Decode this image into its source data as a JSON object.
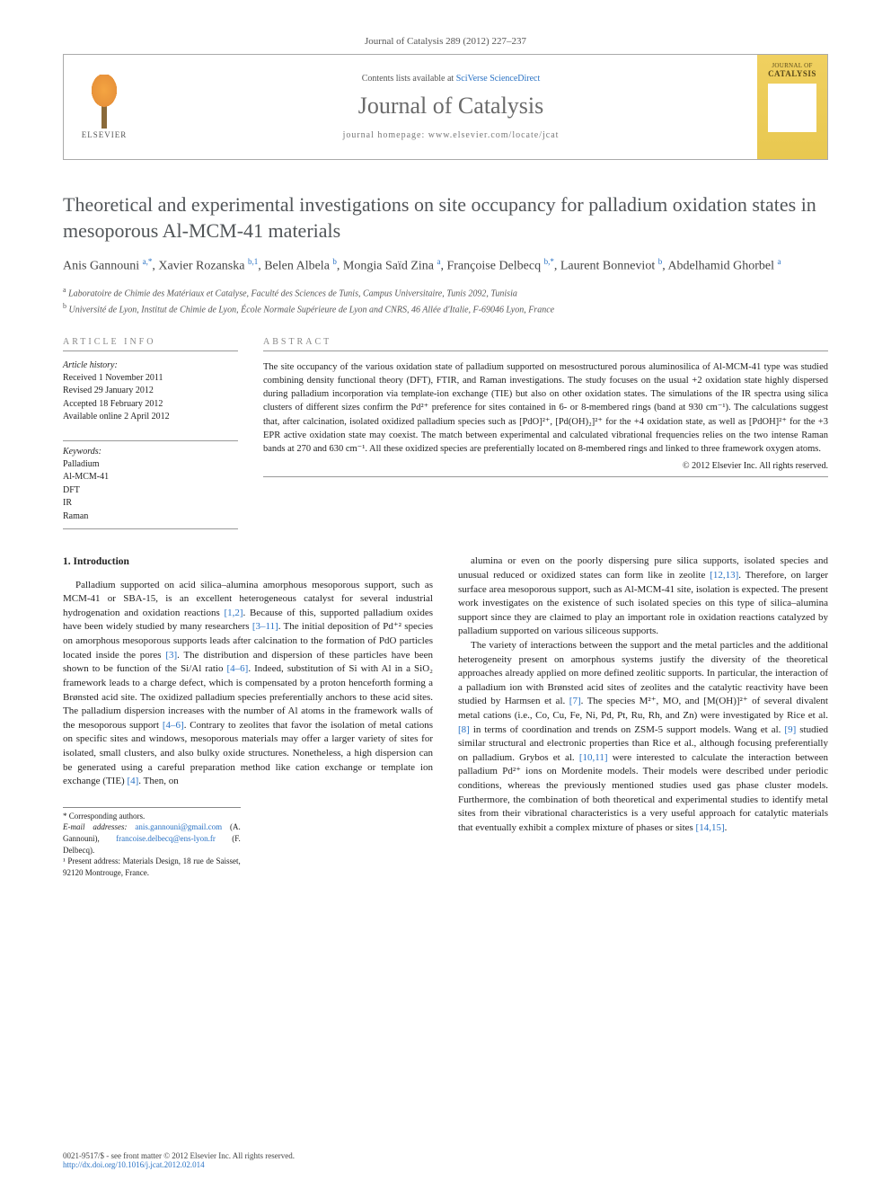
{
  "header": {
    "journal_ref": "Journal of Catalysis 289 (2012) 227–237",
    "contents_prefix": "Contents lists available at ",
    "contents_link_text": "SciVerse ScienceDirect",
    "journal_name": "Journal of Catalysis",
    "homepage_label": "journal homepage: www.elsevier.com/locate/jcat",
    "publisher_logo_text": "ELSEVIER",
    "cover_line1": "JOURNAL OF",
    "cover_line2": "CATALYSIS"
  },
  "article": {
    "title": "Theoretical and experimental investigations on site occupancy for palladium oxidation states in mesoporous Al-MCM-41 materials",
    "authors_html": "Anis Gannouni <sup>a,*</sup>, Xavier Rozanska <sup>b,1</sup>, Belen Albela <sup>b</sup>, Mongia Saïd Zina <sup>a</sup>, Françoise Delbecq <sup>b,*</sup>, Laurent Bonneviot <sup>b</sup>, Abdelhamid Ghorbel <sup>a</sup>",
    "affiliations": {
      "a": "Laboratoire de Chimie des Matériaux et Catalyse, Faculté des Sciences de Tunis, Campus Universitaire, Tunis 2092, Tunisia",
      "b": "Université de Lyon, Institut de Chimie de Lyon, École Normale Supérieure de Lyon and CNRS, 46 Allée d'Italie, F-69046 Lyon, France"
    }
  },
  "article_info": {
    "heading": "ARTICLE INFO",
    "history_label": "Article history:",
    "history": [
      "Received 1 November 2011",
      "Revised 29 January 2012",
      "Accepted 18 February 2012",
      "Available online 2 April 2012"
    ],
    "keywords_label": "Keywords:",
    "keywords": [
      "Palladium",
      "Al-MCM-41",
      "DFT",
      "IR",
      "Raman"
    ]
  },
  "abstract": {
    "heading": "ABSTRACT",
    "text": "The site occupancy of the various oxidation state of palladium supported on mesostructured porous aluminosilica of Al-MCM-41 type was studied combining density functional theory (DFT), FTIR, and Raman investigations. The study focuses on the usual +2 oxidation state highly dispersed during palladium incorporation via template-ion exchange (TIE) but also on other oxidation states. The simulations of the IR spectra using silica clusters of different sizes confirm the Pd²⁺ preference for sites contained in 6- or 8-membered rings (band at 930 cm⁻¹). The calculations suggest that, after calcination, isolated oxidized palladium species such as [PdO]²⁺, [Pd(OH)₂]²⁺ for the +4 oxidation state, as well as [PdOH]²⁺ for the +3 EPR active oxidation state may coexist. The match between experimental and calculated vibrational frequencies relies on the two intense Raman bands at 270 and 630 cm⁻¹. All these oxidized species are preferentially located on 8-membered rings and linked to three framework oxygen atoms.",
    "copyright": "© 2012 Elsevier Inc. All rights reserved."
  },
  "body": {
    "section_heading": "1. Introduction",
    "col1_p1": "Palladium supported on acid silica–alumina amorphous mesoporous support, such as MCM-41 or SBA-15, is an excellent heterogeneous catalyst for several industrial hydrogenation and oxidation reactions [1,2]. Because of this, supported palladium oxides have been widely studied by many researchers [3–11]. The initial deposition of Pd⁺² species on amorphous mesoporous supports leads after calcination to the formation of PdO particles located inside the pores [3]. The distribution and dispersion of these particles have been shown to be function of the Si/Al ratio [4–6]. Indeed, substitution of Si with Al in a SiO₂ framework leads to a charge defect, which is compensated by a proton henceforth forming a Brønsted acid site. The oxidized palladium species preferentially anchors to these acid sites. The palladium dispersion increases with the number of Al atoms in the framework walls of the mesoporous support [4–6]. Contrary to zeolites that favor the isolation of metal cations on specific sites and windows, mesoporous materials may offer a larger variety of sites for isolated, small clusters, and also bulky oxide structures. Nonetheless, a high dispersion can be generated using a careful preparation method like cation exchange or template ion exchange (TIE) [4]. Then, on",
    "col2_p1": "alumina or even on the poorly dispersing pure silica supports, isolated species and unusual reduced or oxidized states can form like in zeolite [12,13]. Therefore, on larger surface area mesoporous support, such as Al-MCM-41 site, isolation is expected. The present work investigates on the existence of such isolated species on this type of silica–alumina support since they are claimed to play an important role in oxidation reactions catalyzed by palladium supported on various siliceous supports.",
    "col2_p2": "The variety of interactions between the support and the metal particles and the additional heterogeneity present on amorphous systems justify the diversity of the theoretical approaches already applied on more defined zeolitic supports. In particular, the interaction of a palladium ion with Brønsted acid sites of zeolites and the catalytic reactivity have been studied by Harmsen et al. [7]. The species M²⁺, MO, and [M(OH)]²⁺ of several divalent metal cations (i.e., Co, Cu, Fe, Ni, Pd, Pt, Ru, Rh, and Zn) were investigated by Rice et al. [8] in terms of coordination and trends on ZSM-5 support models. Wang et al. [9] studied similar structural and electronic properties than Rice et al., although focusing preferentially on palladium. Grybos et al. [10,11] were interested to calculate the interaction between palladium Pd²⁺ ions on Mordenite models. Their models were described under periodic conditions, whereas the previously mentioned studies used gas phase cluster models. Furthermore, the combination of both theoretical and experimental studies to identify metal sites from their vibrational characteristics is a very useful approach for catalytic materials that eventually exhibit a complex mixture of phases or sites [14,15]."
  },
  "footnotes": {
    "corr_label": "* Corresponding authors.",
    "email_label": "E-mail addresses:",
    "email1": "anis.gannouni@gmail.com",
    "email1_name": "(A. Gannouni),",
    "email2": "francoise.delbecq@ens-lyon.fr",
    "email2_name": "(F. Delbecq).",
    "present_addr": "¹ Present address: Materials Design, 18 rue de Saisset, 92120 Montrouge, France."
  },
  "footer": {
    "issn_line": "0021-9517/$ - see front matter © 2012 Elsevier Inc. All rights reserved.",
    "doi_link": "http://dx.doi.org/10.1016/j.jcat.2012.02.014"
  },
  "colors": {
    "link": "#2a72c4",
    "title_gray": "#515558",
    "journal_gray": "#6a6a6a",
    "cover_bg": "#e8c850"
  }
}
